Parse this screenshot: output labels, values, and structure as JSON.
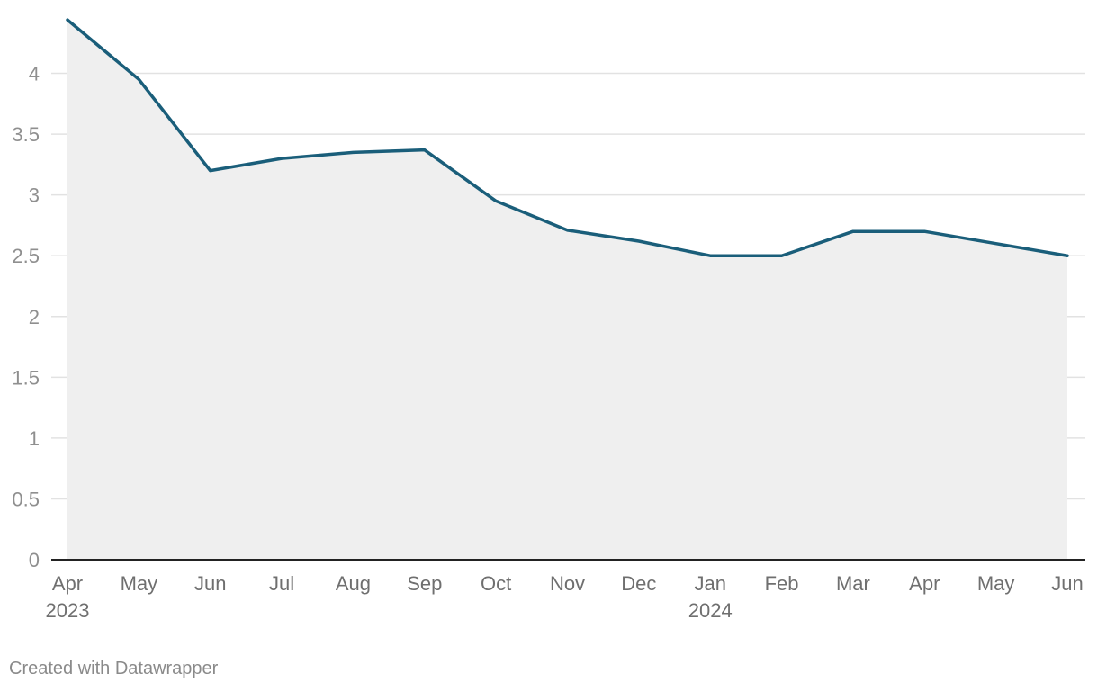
{
  "chart_data": {
    "type": "area",
    "title": "",
    "xlabel": "",
    "ylabel": "",
    "x_labels": [
      "Apr",
      "May",
      "Jun",
      "Jul",
      "Aug",
      "Sep",
      "Oct",
      "Nov",
      "Dec",
      "Jan",
      "Feb",
      "Mar",
      "Apr",
      "May",
      "Jun"
    ],
    "x_dates": [
      "2023-04",
      "2023-05",
      "2023-06",
      "2023-07",
      "2023-08",
      "2023-09",
      "2023-10",
      "2023-11",
      "2023-12",
      "2024-01",
      "2024-02",
      "2024-03",
      "2024-04",
      "2024-05",
      "2024-06"
    ],
    "year_labels": [
      {
        "index": 0,
        "label": "2023"
      },
      {
        "index": 9,
        "label": "2024"
      }
    ],
    "series": [
      {
        "values": [
          4.44,
          3.95,
          3.2,
          3.3,
          3.35,
          3.37,
          2.95,
          2.71,
          2.62,
          2.5,
          2.5,
          2.7,
          2.7,
          2.6,
          2.5
        ],
        "color": "#1a5e7a"
      }
    ],
    "area_color": "#efefef",
    "ylim": [
      0,
      4.5
    ],
    "y_ticks": [
      "0",
      "0.5",
      "1",
      "1.5",
      "2",
      "2.5",
      "3",
      "3.5",
      "4"
    ],
    "grid": true
  },
  "footer": {
    "credit": "Created with Datawrapper"
  }
}
